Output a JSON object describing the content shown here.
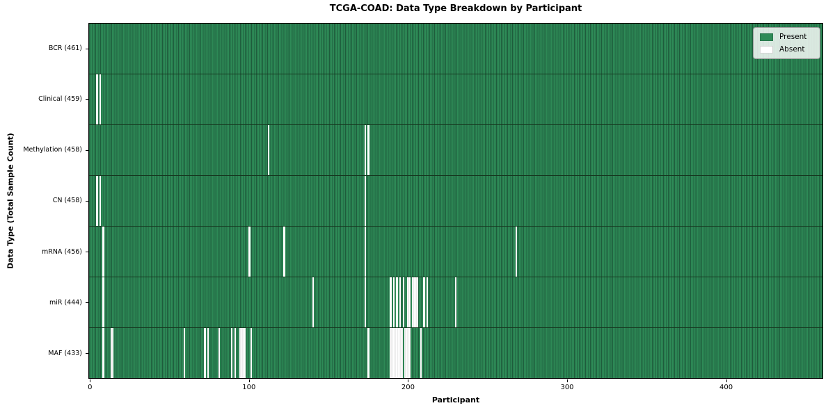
{
  "chart_data": {
    "type": "heatmap",
    "title": "TCGA-COAD: Data Type Breakdown by Participant",
    "xlabel": "Participant",
    "ylabel": "Data Type (Total Sample Count)",
    "n_participants": 461,
    "x_range": [
      -1,
      461
    ],
    "x_ticks": [
      0,
      100,
      200,
      300,
      400
    ],
    "grid": false,
    "legend": {
      "position": "upper right",
      "entries": [
        {
          "label": "Present",
          "color": "#2e8b57"
        },
        {
          "label": "Absent",
          "color": "#ffffff"
        }
      ]
    },
    "colors": {
      "present_fill": "#2e8b57",
      "bar_edge": "#1e5c3c",
      "absent_fill": "#ffffff",
      "row_divider": "#16371f"
    },
    "rows": [
      {
        "name": "BCR",
        "label": "BCR (461)",
        "total": 461,
        "absent_indices": []
      },
      {
        "name": "Clinical",
        "label": "Clinical (459)",
        "total": 459,
        "absent_indices": [
          4,
          6
        ]
      },
      {
        "name": "Methylation",
        "label": "Methylation (458)",
        "total": 458,
        "absent_indices": [
          112,
          173,
          175
        ]
      },
      {
        "name": "CN",
        "label": "CN (458)",
        "total": 458,
        "absent_indices": [
          4,
          6,
          173
        ]
      },
      {
        "name": "mRNA",
        "label": "mRNA (456)",
        "total": 456,
        "absent_indices": [
          8,
          100,
          122,
          173,
          268
        ]
      },
      {
        "name": "miR",
        "label": "miR (444)",
        "total": 444,
        "absent_indices": [
          8,
          140,
          173,
          189,
          191,
          193,
          195,
          197,
          200,
          201,
          203,
          204,
          205,
          206,
          210,
          212,
          230
        ]
      },
      {
        "name": "MAF",
        "label": "MAF (433)",
        "total": 433,
        "absent_indices": [
          8,
          13,
          14,
          59,
          72,
          74,
          81,
          89,
          91,
          94,
          95,
          96,
          97,
          101,
          175,
          189,
          190,
          191,
          192,
          193,
          194,
          195,
          196,
          198,
          199,
          200,
          201,
          208
        ]
      }
    ]
  }
}
